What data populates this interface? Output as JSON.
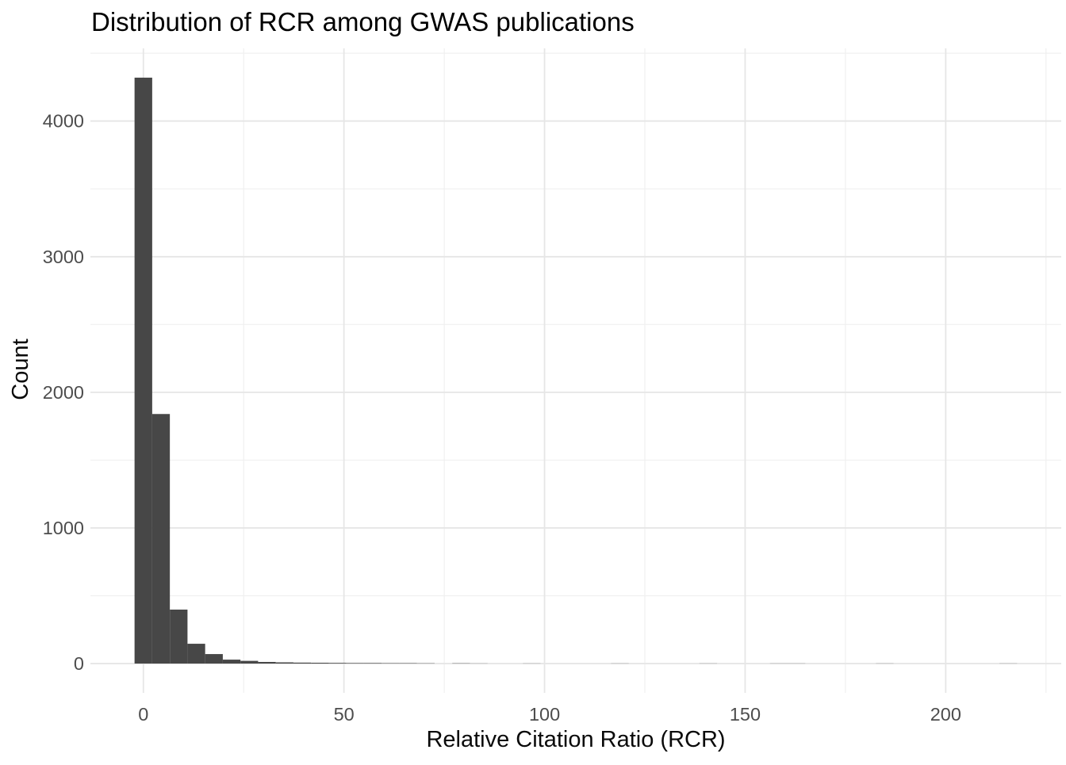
{
  "chart_data": {
    "type": "bar",
    "subtype": "histogram",
    "title": "Distribution of RCR among GWAS publications",
    "xlabel": "Relative Citation Ratio (RCR)",
    "ylabel": "Count",
    "legend": "none",
    "grid": "major+minor",
    "xlim": [
      -13.2,
      228.8
    ],
    "ylim": [
      -216,
      4536
    ],
    "x_major_ticks": [
      0,
      50,
      100,
      150,
      200
    ],
    "x_minor_gridlines": [
      25,
      75,
      125,
      175,
      225
    ],
    "y_major_ticks": [
      0,
      1000,
      2000,
      3000,
      4000
    ],
    "y_minor_gridlines": [
      500,
      1500,
      2500,
      3500,
      4500
    ],
    "bin_width": 4.4,
    "bin_centers": [
      0,
      4.4,
      8.8,
      13.2,
      17.6,
      22,
      26.4,
      30.8,
      35.2,
      39.6,
      44,
      48.4,
      52.8,
      57.2,
      61.6,
      66,
      70.4,
      74.8,
      79.2,
      83.6,
      88,
      92.4,
      96.8,
      101.2,
      105.6,
      110,
      114.4,
      118.8,
      123.2,
      127.6,
      132,
      136.4,
      140.8,
      145.2,
      149.6,
      154,
      158.4,
      162.8,
      167.2,
      171.6,
      176,
      180.4,
      184.8,
      189.2,
      193.6,
      198,
      202.4,
      206.8,
      211.2,
      215.6
    ],
    "counts": [
      4320,
      1840,
      398,
      146,
      70,
      29,
      20,
      12,
      9,
      7,
      6,
      5,
      4,
      4,
      3,
      3,
      2,
      0,
      2,
      1,
      0,
      0,
      1,
      0,
      0,
      0,
      0,
      1,
      0,
      0,
      0,
      0,
      1,
      0,
      0,
      0,
      1,
      1,
      0,
      0,
      0,
      0,
      1,
      0,
      0,
      0,
      0,
      0,
      0,
      1
    ],
    "colors": {
      "bar_fill": "#474747",
      "grid_major": "#e6e6e6",
      "grid_minor": "#f0f0f0",
      "tick_label": "#4d4d4d",
      "title": "#000000",
      "axis_title": "#0a0a0a",
      "background": "#ffffff"
    }
  }
}
